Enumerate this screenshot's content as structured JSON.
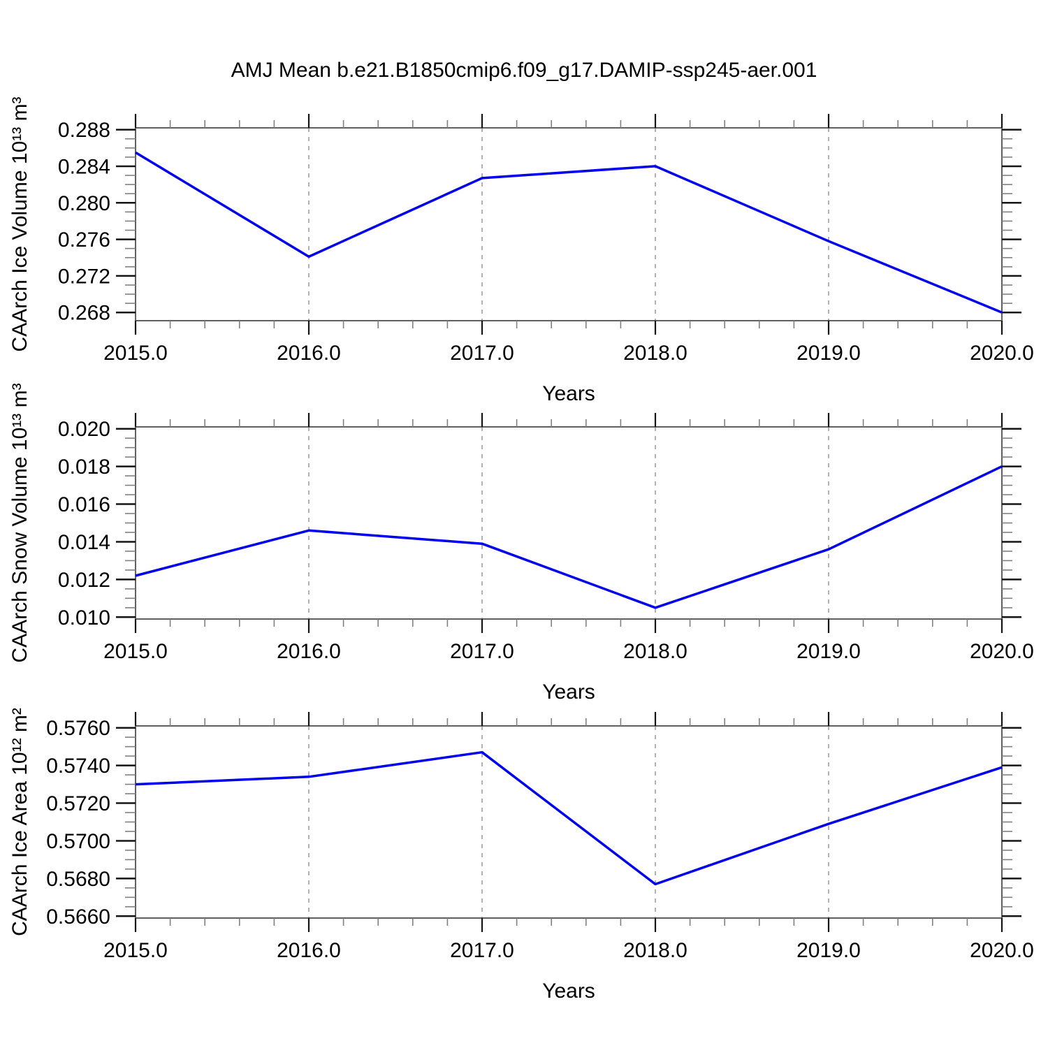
{
  "title": "AMJ Mean b.e21.B1850cmip6.f09_g17.DAMIP-ssp245-aer.001",
  "colors": {
    "line": "#0000ee",
    "frame": "#606060",
    "major_tick": "#151515",
    "minor_tick": "#808080",
    "gridline": "#999999",
    "text": "#000000",
    "background": "#ffffff"
  },
  "chart_data": [
    {
      "type": "line",
      "name": "ice-volume",
      "x": [
        2015,
        2016,
        2017,
        2018,
        2019,
        2020
      ],
      "values": [
        0.2855,
        0.2741,
        0.2827,
        0.284,
        0.2758,
        0.268
      ],
      "xlabel": "Years",
      "ylabel": "CAArch Ice Volume 10¹³ m³",
      "xlim": [
        2015,
        2020
      ],
      "ylim": [
        0.2671,
        0.2882
      ],
      "yticks": [
        0.268,
        0.272,
        0.276,
        0.28,
        0.284,
        0.288
      ],
      "ytick_labels": [
        "0.268",
        "0.272",
        "0.276",
        "0.280",
        "0.284",
        "0.288"
      ],
      "xticks": [
        2015,
        2016,
        2017,
        2018,
        2019,
        2020
      ],
      "xtick_labels": [
        "2015.0",
        "2016.0",
        "2017.0",
        "2018.0",
        "2019.0",
        "2020.0"
      ],
      "y_minor_step": 0.001,
      "x_minor_step": 0.2,
      "gridlines_x": [
        2016,
        2017,
        2018,
        2019
      ],
      "grid_style": "dashed-vertical",
      "legend": "none"
    },
    {
      "type": "line",
      "name": "snow-volume",
      "x": [
        2015,
        2016,
        2017,
        2018,
        2019,
        2020
      ],
      "values": [
        0.0122,
        0.0146,
        0.0139,
        0.0105,
        0.0136,
        0.018
      ],
      "xlabel": "Years",
      "ylabel": "CAArch Snow Volume 10¹³ m³",
      "xlim": [
        2015,
        2020
      ],
      "ylim": [
        0.0099,
        0.0201
      ],
      "yticks": [
        0.01,
        0.012,
        0.014,
        0.016,
        0.018,
        0.02
      ],
      "ytick_labels": [
        "0.010",
        "0.012",
        "0.014",
        "0.016",
        "0.018",
        "0.020"
      ],
      "xticks": [
        2015,
        2016,
        2017,
        2018,
        2019,
        2020
      ],
      "xtick_labels": [
        "2015.0",
        "2016.0",
        "2017.0",
        "2018.0",
        "2019.0",
        "2020.0"
      ],
      "y_minor_step": 0.0005,
      "x_minor_step": 0.2,
      "gridlines_x": [
        2016,
        2017,
        2018,
        2019
      ],
      "grid_style": "dashed-vertical",
      "legend": "none"
    },
    {
      "type": "line",
      "name": "ice-area",
      "x": [
        2015,
        2016,
        2017,
        2018,
        2019,
        2020
      ],
      "values": [
        0.573,
        0.5734,
        0.5747,
        0.5677,
        0.5709,
        0.5739
      ],
      "xlabel": "Years",
      "ylabel": "CAArch Ice Area 10¹² m²",
      "xlim": [
        2015,
        2020
      ],
      "ylim": [
        0.5659,
        0.5761
      ],
      "yticks": [
        0.566,
        0.568,
        0.57,
        0.572,
        0.574,
        0.576
      ],
      "ytick_labels": [
        "0.5660",
        "0.5680",
        "0.5700",
        "0.5720",
        "0.5740",
        "0.5760"
      ],
      "xticks": [
        2015,
        2016,
        2017,
        2018,
        2019,
        2020
      ],
      "xtick_labels": [
        "2015.0",
        "2016.0",
        "2017.0",
        "2018.0",
        "2019.0",
        "2020.0"
      ],
      "y_minor_step": 0.0005,
      "x_minor_step": 0.2,
      "gridlines_x": [
        2016,
        2017,
        2018,
        2019
      ],
      "grid_style": "dashed-vertical",
      "legend": "none"
    }
  ]
}
